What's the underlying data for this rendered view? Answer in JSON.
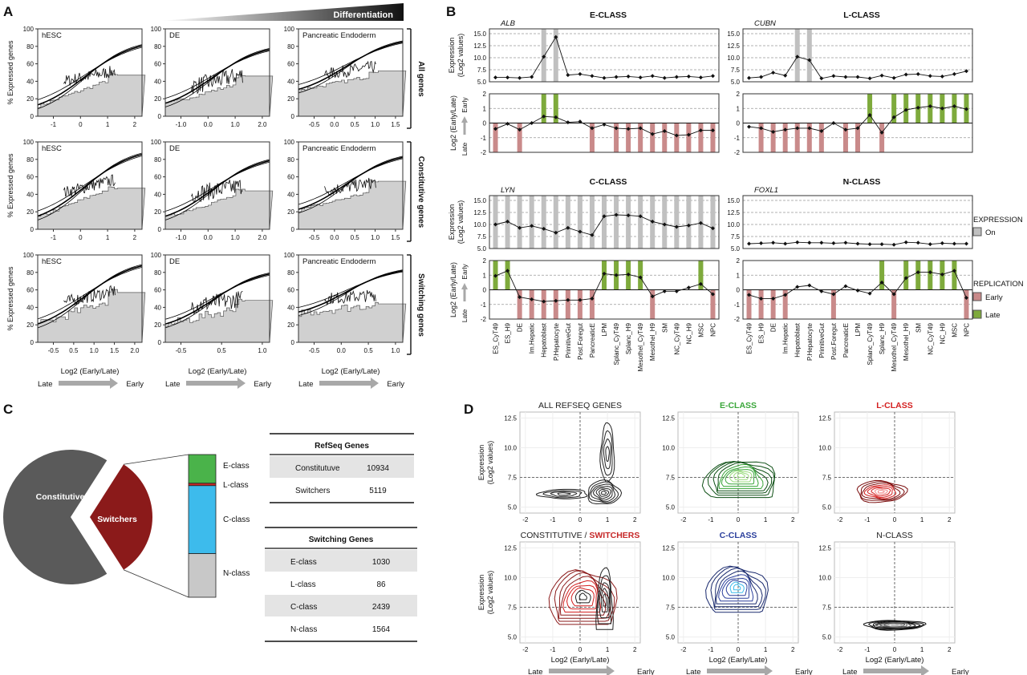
{
  "panels": {
    "a": {
      "letter": "A",
      "differentiation": "Differentiation",
      "ylabel": "% Expressed genes",
      "xlabel": "Log2 (Early/Late)",
      "late": "Late",
      "early": "Early",
      "columns": [
        "hESC",
        "DE",
        "Pancreatic Endoderm"
      ],
      "rows": [
        "All genes",
        "Constitutive genes",
        "Switching genes"
      ],
      "yticks": [
        "0",
        "20",
        "40",
        "60",
        "80",
        "100"
      ],
      "xticks": [
        [
          [
            "-1",
            "0",
            "1",
            "2"
          ],
          [
            "-1.0",
            "0.0",
            "1.0",
            "2.0"
          ],
          [
            "-0.5",
            "0.0",
            "0.5",
            "1.0",
            "1.5"
          ]
        ],
        [
          [
            "-1",
            "0",
            "1",
            "2"
          ],
          [
            "-1.0",
            "0.0",
            "1.0",
            "2.0"
          ],
          [
            "-0.5",
            "0.0",
            "0.5",
            "1.0",
            "1.5"
          ]
        ],
        [
          [
            "-0.5",
            "0.5",
            "1.0",
            "1.5",
            "2.0"
          ],
          [
            "-0.5",
            "0.5",
            "1.0"
          ],
          [
            "-0.5",
            "0.0",
            "0.5",
            "1.0"
          ]
        ]
      ]
    },
    "b": {
      "letter": "B",
      "exp_ylabel": "Expression",
      "exp_ylabel2": "(Log2 values)",
      "rep_ylabel": "Log2 (Early/Late)",
      "late": "Late",
      "early": "Early",
      "exp_yticks": [
        "5.0",
        "7.5",
        "10.0",
        "12.5",
        "15.0"
      ],
      "rep_yticks": [
        "-2",
        "-1",
        "0",
        "1",
        "2"
      ],
      "tissues": [
        "ES_CyT49",
        "ES_H9",
        "DE",
        "Im.Hepatic",
        "Hepatoblast",
        "P.Hepatocyte",
        "PrimitiveGut",
        "Post.Foregut",
        "PancreaticE",
        "LPM",
        "Splanc_CyT49",
        "Splanc_H9",
        "Mesothel_CyT49",
        "Mesothel_H9",
        "SM",
        "NC_CyT49",
        "NC_H9",
        "MSC",
        "NPC"
      ],
      "legend": {
        "expression_title": "EXPRESSION",
        "on": "On",
        "replication_title": "REPLICATION",
        "early": "Early",
        "late": "Late",
        "on_color": "#c0c0c0",
        "early_color": "#c98a8a",
        "late_color": "#7eaa3c"
      },
      "classes": [
        {
          "name": "E-CLASS",
          "gene": "ALB",
          "expression": [
            5.9,
            5.9,
            5.8,
            6.0,
            10.2,
            14.3,
            6.4,
            6.6,
            6.2,
            5.8,
            6.0,
            6.1,
            5.9,
            6.2,
            5.8,
            6.0,
            6.1,
            5.9,
            6.2
          ],
          "replication": [
            -0.4,
            -0.05,
            -0.45,
            0.0,
            0.45,
            0.4,
            0.05,
            0.1,
            -0.35,
            -0.1,
            -0.35,
            -0.4,
            -0.35,
            -0.75,
            -0.55,
            -0.85,
            -0.8,
            -0.5,
            -0.5
          ]
        },
        {
          "name": "L-CLASS",
          "gene": "CUBN",
          "expression": [
            5.8,
            6.0,
            6.9,
            6.3,
            10.2,
            9.5,
            5.7,
            6.2,
            6.0,
            6.0,
            5.7,
            6.3,
            5.8,
            6.5,
            6.6,
            6.2,
            6.1,
            6.6,
            7.2
          ],
          "replication": [
            -0.25,
            -0.35,
            -0.6,
            -0.45,
            -0.35,
            -0.35,
            -0.55,
            0.0,
            -0.45,
            -0.35,
            0.55,
            -0.65,
            0.4,
            0.9,
            1.05,
            1.15,
            1.0,
            1.15,
            0.95
          ]
        },
        {
          "name": "C-CLASS",
          "gene": "LYN",
          "expression": [
            10.0,
            10.6,
            9.3,
            9.7,
            9.1,
            8.3,
            9.3,
            8.5,
            7.8,
            11.7,
            12.0,
            11.9,
            11.7,
            10.6,
            10.0,
            9.5,
            9.8,
            10.3,
            9.2
          ],
          "replication": [
            0.95,
            1.3,
            -0.5,
            -0.65,
            -0.8,
            -0.75,
            -0.7,
            -0.7,
            -0.6,
            1.1,
            1.0,
            1.05,
            0.85,
            -0.45,
            -0.1,
            -0.1,
            0.15,
            0.4,
            -0.3
          ]
        },
        {
          "name": "N-CLASS",
          "gene": "FOXL1",
          "expression": [
            6.0,
            6.1,
            6.2,
            6.0,
            6.3,
            6.2,
            6.2,
            6.1,
            6.2,
            6.0,
            5.9,
            5.9,
            5.8,
            6.3,
            6.2,
            5.9,
            6.1,
            6.0,
            6.0
          ],
          "replication": [
            -0.35,
            -0.6,
            -0.6,
            -0.35,
            0.2,
            0.3,
            -0.1,
            -0.3,
            0.25,
            -0.05,
            -0.25,
            0.5,
            -0.3,
            0.8,
            1.2,
            1.2,
            1.05,
            1.3,
            -0.55
          ]
        }
      ]
    },
    "c": {
      "letter": "C",
      "pie": {
        "constitutive_label": "Constitutive",
        "switchers_label": "Switchers",
        "constitutive": 10934,
        "switchers": 5119,
        "constitutive_color": "#5a5a5a",
        "switchers_color": "#8b1a1a"
      },
      "stack": [
        {
          "label": "E-class",
          "value": 1030,
          "color": "#4ab34a"
        },
        {
          "label": "L-class",
          "value": 86,
          "color": "#c62828"
        },
        {
          "label": "C-class",
          "value": 2439,
          "color": "#3dbbec"
        },
        {
          "label": "N-class",
          "value": 1564,
          "color": "#c8c8c8"
        }
      ],
      "refseq": {
        "title": "RefSeq Genes",
        "rows": [
          [
            "Constitutuve",
            "10934"
          ],
          [
            "Switchers",
            "5119"
          ]
        ]
      },
      "switching": {
        "title": "Switching Genes",
        "rows": [
          [
            "E-class",
            "1030"
          ],
          [
            "L-class",
            "86"
          ],
          [
            "C-class",
            "2439"
          ],
          [
            "N-class",
            "1564"
          ]
        ]
      }
    },
    "d": {
      "letter": "D",
      "ylabel": "Expression",
      "ylabel2": "(Log2 values)",
      "xlabel": "Log2 (Early/Late)",
      "late": "Late",
      "early": "Early",
      "xticks": [
        "-2",
        "-1",
        "0",
        "1",
        "2"
      ],
      "yticks": [
        "5.0",
        "7.5",
        "10.0",
        "12.5"
      ],
      "plots": [
        {
          "title": "ALL REFSEQ GENES",
          "color": "#222222"
        },
        {
          "title": "E-CLASS",
          "color": "#3aa63a"
        },
        {
          "title": "L-CLASS",
          "color": "#d42020"
        },
        {
          "title": "CONSTITUTIVE / ",
          "title2": "SWITCHERS",
          "color": "#222222",
          "color2": "#c62828"
        },
        {
          "title": "C-CLASS",
          "color": "#2b3f9c"
        },
        {
          "title": "N-CLASS",
          "color": "#222222"
        }
      ]
    }
  }
}
